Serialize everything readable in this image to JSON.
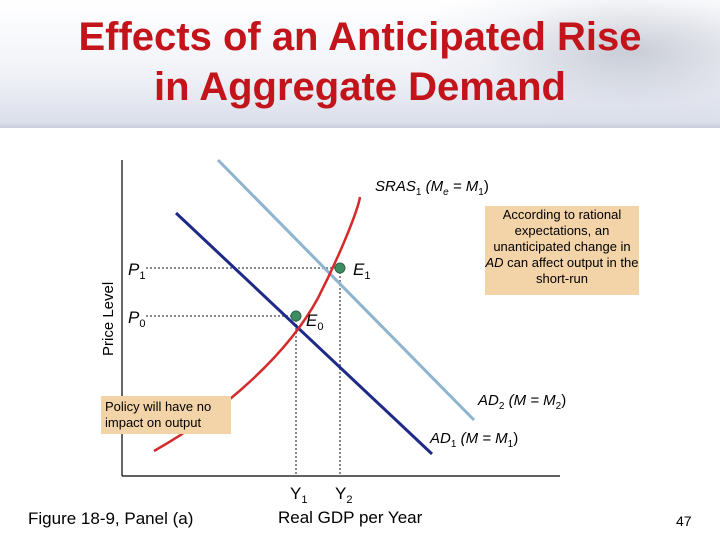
{
  "slide": {
    "title_line1": "Effects of an Anticipated Rise",
    "title_line2": "in Aggregate Demand",
    "caption": "Figure 18-9, Panel (a)",
    "page_number": "47"
  },
  "chart_data": {
    "type": "line",
    "xlabel": "Real GDP per Year",
    "ylabel": "Price Level",
    "x_ticks": [
      {
        "base": "Y",
        "sub": "1"
      },
      {
        "base": "Y",
        "sub": "2"
      }
    ],
    "y_ticks": [
      {
        "base": "P",
        "sub": "1"
      },
      {
        "base": "P",
        "sub": "0"
      }
    ],
    "curves": {
      "sras": {
        "name": "SRAS",
        "sub": "1",
        "open": " (M",
        "mid_sub": "e",
        "middle": " = M",
        "end_sub": "1",
        "close": ")"
      },
      "ad2": {
        "name": "AD",
        "sub": "2",
        "open": " (M = M",
        "end_sub": "2",
        "close": ")"
      },
      "ad1": {
        "name": "AD",
        "sub": "1",
        "open": " (M = M",
        "end_sub": "1",
        "close": ")"
      }
    },
    "points": [
      {
        "base": "E",
        "sub": "1"
      },
      {
        "base": "E",
        "sub": "0"
      }
    ],
    "annotations": {
      "rational": "According to rational expectations, an unanticipated change in AD can affect output in the short-run",
      "rational_pre": "According to rational expectations, an unanticipated change in ",
      "rational_em": "AD",
      "rational_post": " can affect output in the short-run",
      "policy": "Policy will have no impact on output"
    },
    "colors": {
      "sras": "#d42a2a",
      "ad1": "#1f2a88",
      "ad2": "#8eb4d0",
      "point": "#3f8c63",
      "callout": "#f3d3a8",
      "title": "#c2141a"
    }
  }
}
